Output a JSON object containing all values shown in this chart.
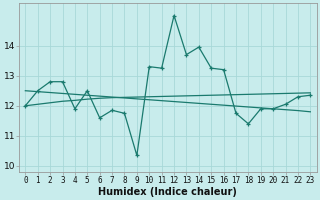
{
  "title": "",
  "xlabel": "Humidex (Indice chaleur)",
  "ylabel": "",
  "bg_color": "#c8ecec",
  "grid_color": "#a8d8d8",
  "line_color": "#1a7a6e",
  "marker_color": "#1a7a6e",
  "x": [
    0,
    1,
    2,
    3,
    4,
    5,
    6,
    7,
    8,
    9,
    10,
    11,
    12,
    13,
    14,
    15,
    16,
    17,
    18,
    19,
    20,
    21,
    22,
    23
  ],
  "y_main": [
    12.0,
    12.5,
    12.8,
    12.8,
    11.9,
    12.5,
    11.6,
    11.85,
    11.75,
    10.35,
    13.3,
    13.25,
    15.0,
    13.7,
    13.95,
    13.25,
    13.2,
    11.75,
    11.4,
    11.9,
    11.9,
    12.05,
    12.3,
    12.35
  ],
  "y_trend1": [
    12.0,
    12.05,
    12.1,
    12.15,
    12.18,
    12.22,
    12.25,
    12.27,
    12.28,
    12.29,
    12.3,
    12.31,
    12.32,
    12.33,
    12.34,
    12.35,
    12.36,
    12.37,
    12.38,
    12.39,
    12.4,
    12.41,
    12.42,
    12.43
  ],
  "y_trend2": [
    12.5,
    12.47,
    12.44,
    12.41,
    12.38,
    12.35,
    12.32,
    12.29,
    12.26,
    12.23,
    12.2,
    12.17,
    12.14,
    12.11,
    12.08,
    12.05,
    12.02,
    11.99,
    11.96,
    11.93,
    11.9,
    11.87,
    11.84,
    11.8
  ],
  "xlim": [
    -0.5,
    23.5
  ],
  "ylim": [
    9.8,
    15.4
  ],
  "yticks": [
    10,
    11,
    12,
    13,
    14
  ],
  "xticks": [
    0,
    1,
    2,
    3,
    4,
    5,
    6,
    7,
    8,
    9,
    10,
    11,
    12,
    13,
    14,
    15,
    16,
    17,
    18,
    19,
    20,
    21,
    22,
    23
  ],
  "xlabel_fontsize": 7,
  "tick_fontsize": 5.5,
  "ytick_fontsize": 6.5
}
